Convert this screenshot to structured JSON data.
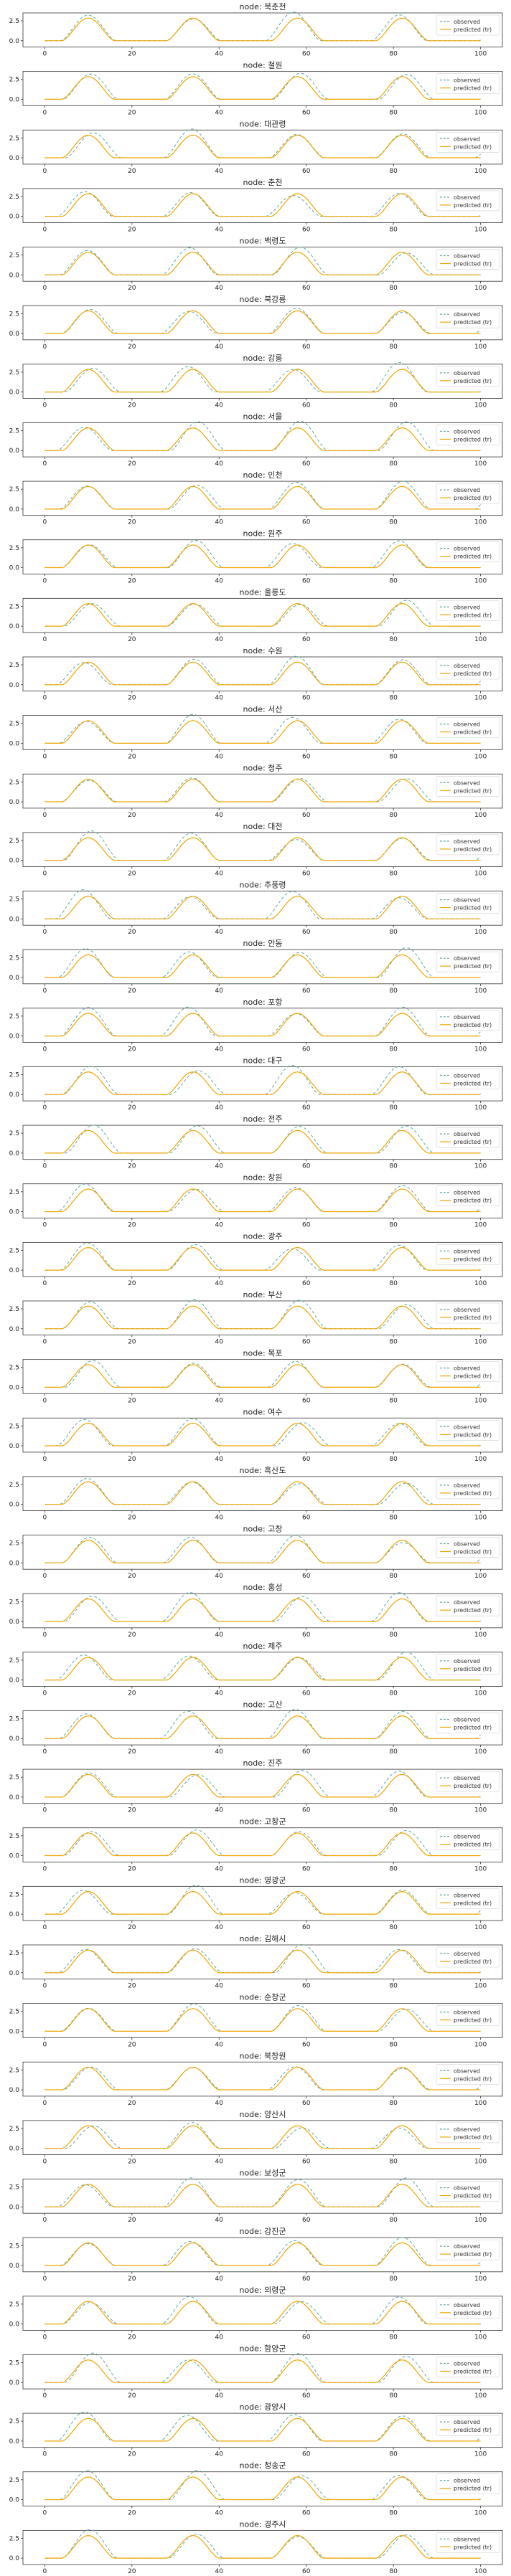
{
  "chart_data": {
    "type": "line",
    "title_prefix": "node: ",
    "nodes": [
      "북춘천",
      "철원",
      "대관령",
      "춘천",
      "백령도",
      "북강릉",
      "강릉",
      "서울",
      "인천",
      "원주",
      "울릉도",
      "수원",
      "서산",
      "청주",
      "대전",
      "추풍령",
      "안동",
      "포항",
      "대구",
      "전주",
      "창원",
      "광주",
      "부산",
      "목포",
      "여수",
      "흑산도",
      "고창",
      "홍성",
      "제주",
      "고산",
      "진주",
      "고창군",
      "영광군",
      "김해시",
      "순창군",
      "북창원",
      "양산시",
      "보성군",
      "강진군",
      "의령군",
      "함양군",
      "광양시",
      "청송군",
      "경주시"
    ],
    "xlim": [
      -5,
      105
    ],
    "xticks": [
      0,
      20,
      40,
      60,
      80,
      100
    ],
    "ylim": [
      -0.8,
      3.5
    ],
    "yticks": [
      0.0,
      2.5
    ],
    "ytick_labels": [
      "0.0",
      "2.5"
    ],
    "legend": {
      "placement": "right",
      "entries": [
        "observed",
        "predicted (tr)"
      ]
    },
    "series": [
      {
        "name": "observed",
        "color": "#5fa8a8",
        "style": "dashed"
      },
      {
        "name": "predicted (tr)",
        "color": "#f0a500",
        "style": "solid"
      }
    ],
    "x_period": 24,
    "active_window": [
      4,
      16
    ],
    "peak_value": 3.0
  }
}
